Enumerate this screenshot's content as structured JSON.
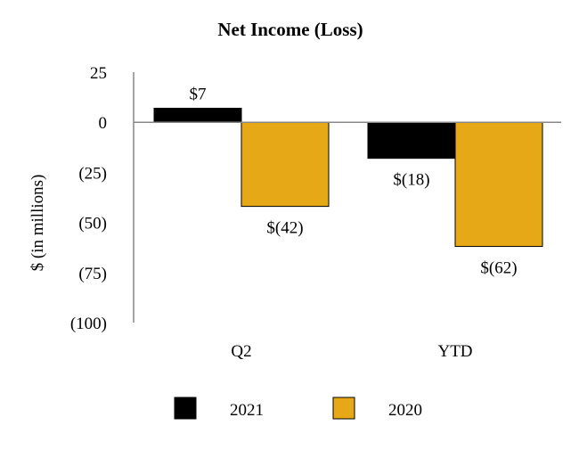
{
  "chart_data": {
    "type": "bar",
    "title": "Net Income (Loss)",
    "xlabel": "",
    "ylabel": "$ (in millions)",
    "ylim": [
      -100,
      25
    ],
    "yticks": [
      25,
      0,
      -25,
      -50,
      -75,
      -100
    ],
    "ytick_labels": [
      "25",
      "0",
      "(25)",
      "(50)",
      "(75)",
      "(100)"
    ],
    "categories": [
      "Q2",
      "YTD"
    ],
    "series": [
      {
        "name": "2021",
        "values": [
          7,
          -18
        ],
        "labels": [
          "$7",
          "$(18)"
        ],
        "color": "#000000"
      },
      {
        "name": "2020",
        "values": [
          -42,
          -62
        ],
        "labels": [
          "$(42)",
          "$(62)"
        ],
        "color": "#E6A817"
      }
    ],
    "grid": false,
    "legend_position": "bottom"
  }
}
